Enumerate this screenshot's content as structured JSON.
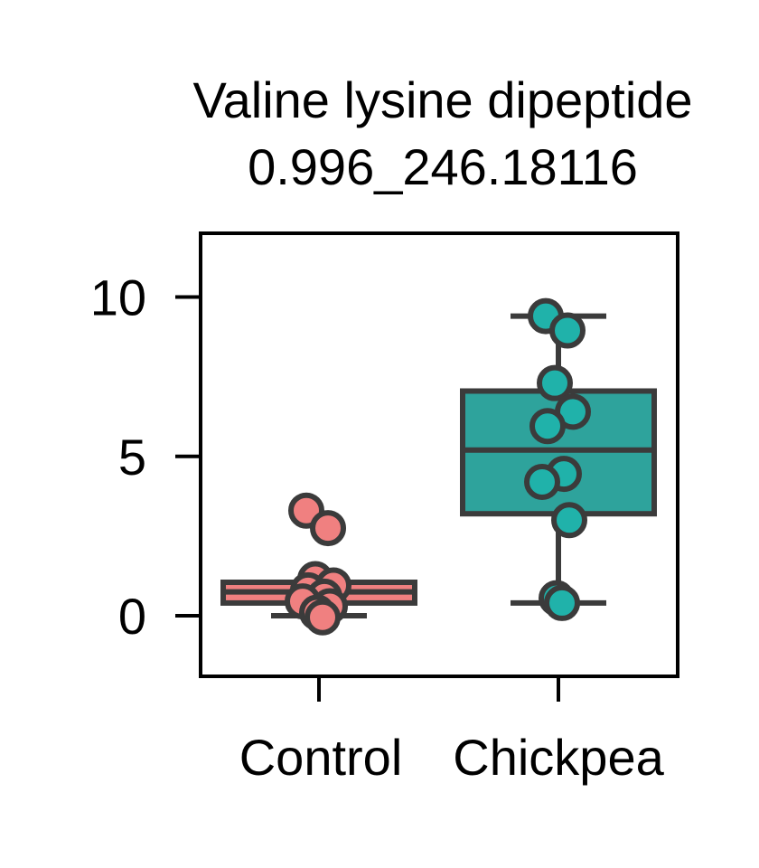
{
  "chart_data": {
    "type": "box",
    "title": "Valine lysine dipeptide",
    "subtitle": "0.996_246.18116",
    "xlabel": "",
    "ylabel": "",
    "categories": [
      "Control",
      "Chickpea"
    ],
    "ylim": [
      -1.9,
      12
    ],
    "yticks": [
      0,
      5,
      10
    ],
    "grid": false,
    "legend": "none",
    "colors": {
      "Control": {
        "box": "#F08080",
        "point": "#F08080"
      },
      "Chickpea": {
        "box": "#2EA39C",
        "point": "#20B2AA"
      },
      "edge": "#3b3b3b"
    },
    "boxes": [
      {
        "category": "Control",
        "whisker_low": 0.0,
        "q1": 0.4,
        "median": 0.75,
        "q3": 1.05,
        "whisker_high": 1.05
      },
      {
        "category": "Chickpea",
        "whisker_low": 0.4,
        "q1": 3.2,
        "median": 5.2,
        "q3": 7.05,
        "whisker_high": 9.4
      }
    ],
    "points": {
      "Control": [
        3.3,
        2.75,
        1.15,
        0.95,
        0.8,
        0.6,
        0.45,
        0.3,
        0.1,
        -0.05
      ],
      "Chickpea": [
        9.4,
        8.95,
        7.3,
        6.4,
        5.95,
        4.45,
        4.2,
        3.0,
        0.55,
        0.4
      ]
    }
  }
}
